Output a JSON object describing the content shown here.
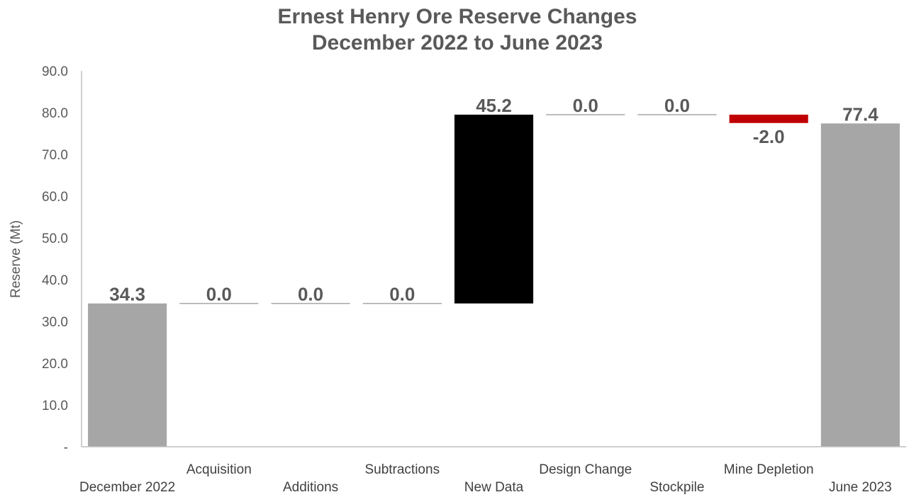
{
  "chart_data": {
    "type": "bar",
    "subtype": "waterfall",
    "title": "Ernest Henry Ore Reserve Changes",
    "subtitle": "December 2022 to June 2023",
    "ylabel": "Reserve (Mt)",
    "xlabel": "",
    "ylim": [
      0,
      90
    ],
    "yticks": [
      {
        "value": 0,
        "label": "-"
      },
      {
        "value": 10,
        "label": "10.0"
      },
      {
        "value": 20,
        "label": "20.0"
      },
      {
        "value": 30,
        "label": "30.0"
      },
      {
        "value": 40,
        "label": "40.0"
      },
      {
        "value": 50,
        "label": "50.0"
      },
      {
        "value": 60,
        "label": "60.0"
      },
      {
        "value": 70,
        "label": "70.0"
      },
      {
        "value": 80,
        "label": "80.0"
      },
      {
        "value": 90,
        "label": "90.0"
      }
    ],
    "grid": false,
    "legend": "none",
    "categories": [
      "December 2022",
      "Acquisition",
      "Additions",
      "Subtractions",
      "New Data",
      "Design Change",
      "Stockpile",
      "Mine Depletion",
      "June 2023"
    ],
    "bars": [
      {
        "category": "December 2022",
        "kind": "total",
        "value": 34.3,
        "label": "34.3",
        "color": "#a6a6a6"
      },
      {
        "category": "Acquisition",
        "kind": "change",
        "value": 0.0,
        "label": "0.0",
        "color": "#a6a6a6"
      },
      {
        "category": "Additions",
        "kind": "change",
        "value": 0.0,
        "label": "0.0",
        "color": "#a6a6a6"
      },
      {
        "category": "Subtractions",
        "kind": "change",
        "value": 0.0,
        "label": "0.0",
        "color": "#a6a6a6"
      },
      {
        "category": "New Data",
        "kind": "change",
        "value": 45.2,
        "label": "45.2",
        "color": "#000000"
      },
      {
        "category": "Design Change",
        "kind": "change",
        "value": 0.0,
        "label": "0.0",
        "color": "#a6a6a6"
      },
      {
        "category": "Stockpile",
        "kind": "change",
        "value": 0.0,
        "label": "0.0",
        "color": "#a6a6a6"
      },
      {
        "category": "Mine Depletion",
        "kind": "change",
        "value": -2.0,
        "label": "-2.0",
        "color": "#c00000"
      },
      {
        "category": "June 2023",
        "kind": "total",
        "value": 77.4,
        "label": "77.4",
        "color": "#a6a6a6"
      }
    ],
    "colors": {
      "text": "#595959",
      "axis": "#bfbfbf",
      "total": "#a6a6a6",
      "increase": "#000000",
      "decrease": "#c00000"
    }
  }
}
